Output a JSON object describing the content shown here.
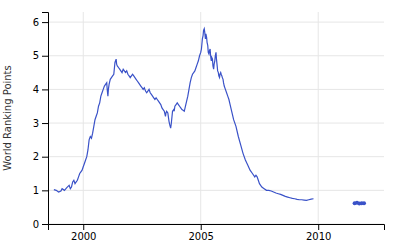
{
  "chart_data": {
    "type": "line",
    "ylabel": "World Ranking Points",
    "xlim": [
      1998.5,
      2012.8
    ],
    "ylim": [
      0,
      6.3
    ],
    "xticks": [
      2000,
      2005,
      2010
    ],
    "yticks": [
      0,
      1,
      2,
      3,
      4,
      5,
      6
    ],
    "grid": true,
    "series": [
      {
        "color": "#3a52c8",
        "x": [
          1998.75,
          1998.85,
          1998.95,
          1999.05,
          1999.1,
          1999.2,
          1999.3,
          1999.4,
          1999.45,
          1999.5,
          1999.55,
          1999.6,
          1999.65,
          1999.7,
          1999.75,
          1999.8,
          1999.85,
          1999.9,
          1999.95,
          2000.0,
          2000.05,
          2000.1,
          2000.15,
          2000.2,
          2000.25,
          2000.3,
          2000.35,
          2000.4,
          2000.45,
          2000.5,
          2000.55,
          2000.6,
          2000.65,
          2000.7,
          2000.75,
          2000.8,
          2000.85,
          2000.9,
          2000.95,
          2001.0,
          2001.02,
          2001.05,
          2001.07,
          2001.1,
          2001.15,
          2001.2,
          2001.25,
          2001.3,
          2001.35,
          2001.4,
          2001.42,
          2001.45,
          2001.5,
          2001.55,
          2001.6,
          2001.65,
          2001.7,
          2001.75,
          2001.8,
          2001.85,
          2001.9,
          2001.95,
          2002.0,
          2002.05,
          2002.1,
          2002.15,
          2002.2,
          2002.25,
          2002.3,
          2002.35,
          2002.4,
          2002.45,
          2002.5,
          2002.55,
          2002.6,
          2002.65,
          2002.7,
          2002.75,
          2002.8,
          2002.85,
          2002.9,
          2002.95,
          2003.0,
          2003.05,
          2003.1,
          2003.15,
          2003.2,
          2003.25,
          2003.3,
          2003.35,
          2003.4,
          2003.45,
          2003.5,
          2003.52,
          2003.55,
          2003.6,
          2003.62,
          2003.65,
          2003.68,
          2003.7,
          2003.72,
          2003.75,
          2003.8,
          2003.85,
          2003.87,
          2003.9,
          2003.95,
          2004.0,
          2004.05,
          2004.1,
          2004.15,
          2004.2,
          2004.25,
          2004.3,
          2004.35,
          2004.4,
          2004.45,
          2004.5,
          2004.55,
          2004.6,
          2004.65,
          2004.7,
          2004.75,
          2004.8,
          2004.85,
          2004.9,
          2004.95,
          2005.0,
          2005.03,
          2005.05,
          2005.07,
          2005.1,
          2005.12,
          2005.15,
          2005.17,
          2005.2,
          2005.22,
          2005.25,
          2005.27,
          2005.3,
          2005.32,
          2005.35,
          2005.37,
          2005.4,
          2005.42,
          2005.45,
          2005.47,
          2005.5,
          2005.52,
          2005.55,
          2005.57,
          2005.6,
          2005.62,
          2005.65,
          2005.67,
          2005.7,
          2005.72,
          2005.75,
          2005.77,
          2005.8,
          2005.82,
          2005.85,
          2005.87,
          2005.9,
          2005.92,
          2005.95,
          2005.97,
          2006.0,
          2006.05,
          2006.1,
          2006.15,
          2006.2,
          2006.25,
          2006.3,
          2006.35,
          2006.4,
          2006.5,
          2006.6,
          2006.7,
          2006.8,
          2006.9,
          2007.0,
          2007.1,
          2007.2,
          2007.3,
          2007.35,
          2007.4,
          2007.45,
          2007.5,
          2007.55,
          2007.6,
          2007.7,
          2007.8,
          2007.9,
          2008.0,
          2008.1,
          2008.2,
          2008.3,
          2008.4,
          2008.5,
          2008.6,
          2008.7,
          2008.8,
          2008.9,
          2009.0,
          2009.1,
          2009.2,
          2009.3,
          2009.4,
          2009.5,
          2009.6,
          2009.7,
          2009.8
        ],
        "values": [
          1.02,
          1.0,
          0.95,
          0.98,
          1.05,
          1.0,
          1.08,
          1.15,
          1.05,
          1.1,
          1.25,
          1.3,
          1.2,
          1.25,
          1.3,
          1.4,
          1.5,
          1.55,
          1.6,
          1.7,
          1.8,
          1.9,
          2.0,
          2.2,
          2.5,
          2.6,
          2.55,
          2.7,
          2.9,
          3.1,
          3.2,
          3.3,
          3.5,
          3.6,
          3.8,
          3.9,
          4.0,
          4.1,
          4.15,
          4.2,
          4.0,
          3.8,
          4.0,
          4.15,
          4.3,
          4.35,
          4.4,
          4.45,
          4.8,
          4.9,
          4.75,
          4.7,
          4.65,
          4.6,
          4.55,
          4.5,
          4.6,
          4.55,
          4.5,
          4.55,
          4.45,
          4.4,
          4.35,
          4.4,
          4.45,
          4.4,
          4.35,
          4.3,
          4.25,
          4.2,
          4.15,
          4.1,
          4.05,
          4.0,
          4.05,
          3.95,
          3.9,
          3.95,
          4.0,
          3.9,
          3.85,
          3.8,
          3.75,
          3.7,
          3.75,
          3.7,
          3.65,
          3.6,
          3.55,
          3.45,
          3.4,
          3.35,
          3.2,
          3.3,
          3.35,
          3.3,
          3.2,
          3.05,
          2.95,
          2.9,
          2.85,
          3.0,
          3.35,
          3.4,
          3.35,
          3.5,
          3.55,
          3.6,
          3.55,
          3.5,
          3.45,
          3.4,
          3.38,
          3.35,
          3.5,
          3.65,
          3.8,
          4.0,
          4.2,
          4.35,
          4.45,
          4.5,
          4.55,
          4.65,
          4.75,
          4.85,
          5.0,
          5.1,
          5.2,
          5.35,
          5.5,
          5.6,
          5.75,
          5.8,
          5.7,
          5.5,
          5.65,
          5.55,
          5.4,
          5.3,
          5.1,
          5.05,
          5.15,
          5.2,
          5.0,
          4.85,
          4.95,
          4.9,
          4.7,
          4.6,
          4.75,
          4.85,
          5.0,
          5.1,
          4.9,
          4.7,
          4.55,
          4.5,
          4.4,
          4.35,
          4.45,
          4.5,
          4.45,
          4.4,
          4.35,
          4.3,
          4.2,
          4.1,
          4.0,
          3.9,
          3.8,
          3.7,
          3.55,
          3.4,
          3.25,
          3.1,
          2.9,
          2.6,
          2.35,
          2.1,
          1.9,
          1.75,
          1.6,
          1.5,
          1.4,
          1.45,
          1.4,
          1.3,
          1.2,
          1.15,
          1.1,
          1.05,
          1.0,
          1.0,
          0.98,
          0.95,
          0.92,
          0.9,
          0.88,
          0.85,
          0.82,
          0.8,
          0.78,
          0.76,
          0.75,
          0.73,
          0.72,
          0.72,
          0.71,
          0.7,
          0.72,
          0.74,
          0.75
        ]
      },
      {
        "color": "#3a52c8",
        "marker": "dot",
        "line_style": "none",
        "x": [
          2011.55,
          2011.65,
          2011.75,
          2011.85,
          2011.95
        ],
        "values": [
          0.62,
          0.63,
          0.61,
          0.62,
          0.62
        ]
      }
    ]
  }
}
